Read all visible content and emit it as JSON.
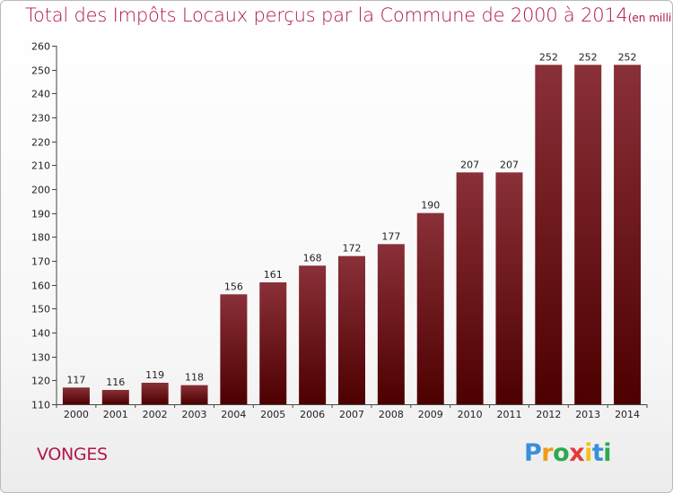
{
  "chart_data": {
    "type": "bar",
    "title": "Total des Impôts Locaux perçus par la Commune de 2000 à 2014",
    "title_unit": "(en milliers d'€)",
    "categories": [
      "2000",
      "2001",
      "2002",
      "2003",
      "2004",
      "2005",
      "2006",
      "2007",
      "2008",
      "2009",
      "2010",
      "2011",
      "2012",
      "2013",
      "2014"
    ],
    "values": [
      117,
      116,
      119,
      118,
      156,
      161,
      168,
      172,
      177,
      190,
      207,
      207,
      252,
      252,
      252
    ],
    "ylim": [
      110,
      260
    ],
    "yticks": [
      110,
      120,
      130,
      140,
      150,
      160,
      170,
      180,
      190,
      200,
      210,
      220,
      230,
      240,
      250,
      260
    ],
    "grid": false,
    "bar_color_top": "#8a3038",
    "bar_color_bottom": "#4d0000"
  },
  "commune": "VONGES",
  "logo": {
    "letters": [
      "P",
      "r",
      "o",
      "x",
      "i",
      "t",
      "i"
    ],
    "colors": [
      "#3a8fd9",
      "#f29a1d",
      "#2fa84f",
      "#e23b3b",
      "#f2c21d",
      "#3a8fd9",
      "#2fa84f"
    ]
  }
}
